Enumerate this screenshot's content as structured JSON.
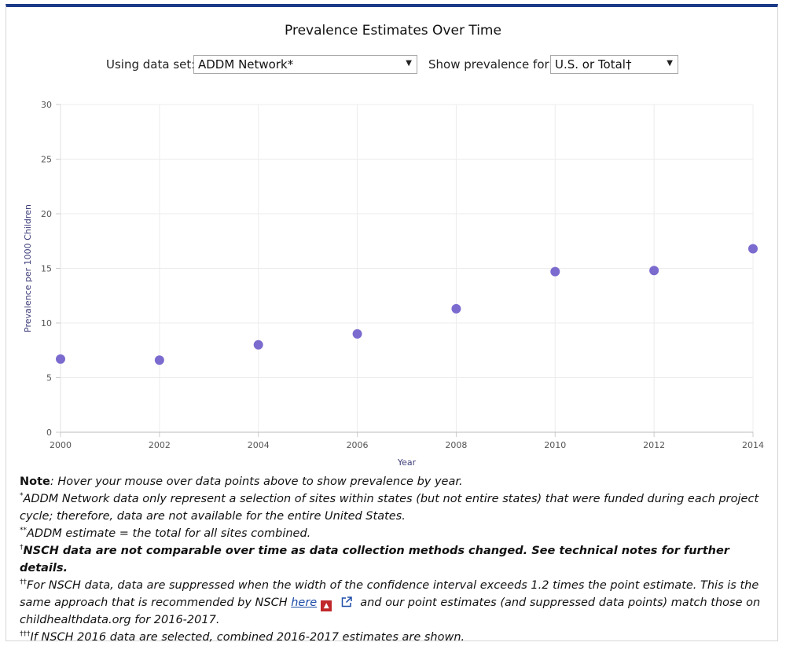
{
  "header": {
    "title": "Prevalence Estimates Over Time"
  },
  "controls": {
    "dataset_label": "Using data set:",
    "dataset_value": "ADDM Network*",
    "prevalence_label": "Show prevalence for:",
    "prevalence_value": "U.S. or Total†"
  },
  "colors": {
    "marker": "#7b6bcf",
    "header_bar": "#1c3a87",
    "axis_title": "#3d3d7a"
  },
  "chart_data": {
    "type": "scatter",
    "title": "",
    "xlabel": "Year",
    "ylabel": "Prevalence per 1000 Children",
    "xlim": [
      2000,
      2014
    ],
    "ylim": [
      0,
      30
    ],
    "x_ticks": [
      "2000",
      "2002",
      "2004",
      "2006",
      "2008",
      "2010",
      "2012",
      "2014"
    ],
    "y_ticks": [
      "0",
      "5",
      "10",
      "15",
      "20",
      "25",
      "30"
    ],
    "grid": true,
    "series": [
      {
        "x": [
          2000,
          2002,
          2004,
          2006,
          2008,
          2010,
          2012,
          2014
        ],
        "y": [
          6.7,
          6.6,
          8.0,
          9.0,
          11.3,
          14.7,
          14.8,
          16.8
        ]
      }
    ]
  },
  "notes": {
    "note_label": "Note",
    "note_text": ": Hover your mouse over data points above to show prevalence by year.",
    "n1_mark": "*",
    "n1_text": "ADDM Network data only represent a selection of sites within states (but not entire states) that were funded during each project cycle; therefore, data are not available for the entire United States.",
    "n2_mark": "**",
    "n2_text": "ADDM estimate = the total for all sites combined.",
    "n3_mark": "†",
    "n3_text": "NSCH data are not comparable over time as data collection methods changed. See technical notes for further details.",
    "n4_mark": "††",
    "n4_text_a": "For NSCH data, data are suppressed when the width of the confidence interval exceeds 1.2 times the point estimate. This is the same approach that is recommended by NSCH ",
    "n4_link": "here",
    "n4_pdf_icon": "pdf-icon",
    "n4_ext_icon": "external-link-icon",
    "n4_text_b": "and our point estimates (and suppressed data points) match those on childhealthdata.org for 2016-2017.",
    "n5_mark": "†††",
    "n5_text": "If NSCH 2016 data are selected, combined 2016-2017 estimates are shown."
  }
}
